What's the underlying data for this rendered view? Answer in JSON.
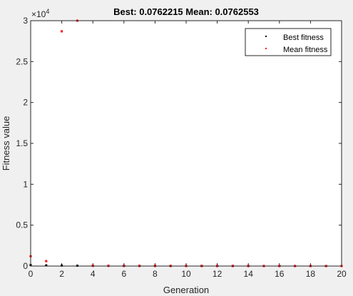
{
  "chart_data": {
    "type": "scatter",
    "title": "Best: 0.0762215 Mean: 0.0762553",
    "xlabel": "Generation",
    "ylabel": "Fitness value",
    "xlim": [
      0,
      20
    ],
    "ylim": [
      0,
      30000
    ],
    "x_ticks": [
      0,
      2,
      4,
      6,
      8,
      10,
      12,
      14,
      16,
      18,
      20
    ],
    "x_tick_labels": [
      "0",
      "2",
      "4",
      "6",
      "8",
      "10",
      "12",
      "14",
      "16",
      "18",
      "20"
    ],
    "y_ticks": [
      0,
      5000,
      10000,
      15000,
      20000,
      25000,
      30000
    ],
    "y_tick_labels": [
      "0",
      "0.5",
      "1",
      "1.5",
      "2",
      "2.5",
      "3"
    ],
    "y_exponent_label": "×10",
    "y_exponent_power": "4",
    "grid": false,
    "legend_position": "top-right",
    "series": [
      {
        "name": "Best fitness",
        "color": "#000000",
        "x": [
          0,
          1,
          2,
          3,
          4,
          5,
          6,
          7,
          8,
          9,
          10,
          11,
          12,
          13,
          14,
          15,
          16,
          17,
          18,
          19,
          20
        ],
        "values": [
          120,
          80,
          60,
          40,
          30,
          25,
          20,
          18,
          15,
          12,
          10,
          9,
          8,
          7,
          6,
          5,
          4,
          3,
          2,
          1,
          0.0762215
        ]
      },
      {
        "name": "Mean fitness",
        "color": "#ff0000",
        "x": [
          0,
          1,
          2,
          3,
          4,
          5,
          6,
          7,
          8,
          9,
          10,
          11,
          12,
          13,
          14,
          15,
          16,
          17,
          18,
          19,
          20
        ],
        "values": [
          1200,
          600,
          28700,
          30000,
          40,
          35,
          30,
          28,
          25,
          22,
          20,
          18,
          16,
          14,
          12,
          10,
          8,
          6,
          4,
          2,
          0.0762553
        ]
      }
    ]
  }
}
